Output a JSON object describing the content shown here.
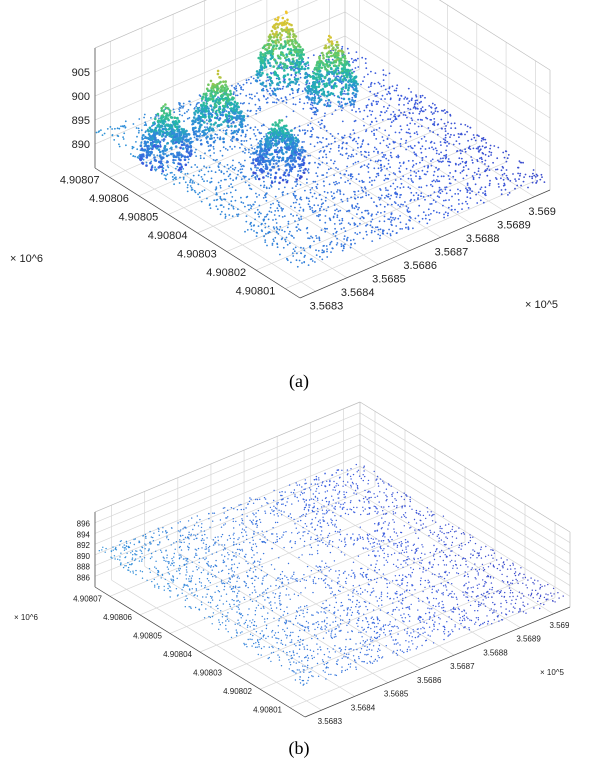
{
  "chart_data": [
    {
      "type": "scatter3d",
      "panel_label": "(a)",
      "title": "",
      "xlabel": "",
      "ylabel": "",
      "zlabel": "",
      "x_ticks": [
        "3.5683",
        "3.5684",
        "3.5685",
        "3.5686",
        "3.5687",
        "3.5688",
        "3.5689",
        "3.569"
      ],
      "x_multiplier": "× 10^5",
      "y_ticks": [
        "4.90801",
        "4.90802",
        "4.90803",
        "4.90804",
        "4.90805",
        "4.90806",
        "4.90807"
      ],
      "y_multiplier": "× 10^6",
      "z_ticks": [
        "890",
        "895",
        "900",
        "905"
      ],
      "xlim": [
        356830,
        356900
      ],
      "ylim": [
        4908005,
        4908075
      ],
      "zlim": [
        887,
        905
      ],
      "grid": true,
      "colormap": [
        "#3b2fb0",
        "#3a5ee0",
        "#2f8fd8",
        "#22b8a8",
        "#5cc86a",
        "#c9c43a",
        "#f6c62b",
        "#f9d81f"
      ],
      "tree_crowns": [
        {
          "x": 356840,
          "y": 4908063,
          "z": 898
        },
        {
          "x": 356853,
          "y": 4908061,
          "z": 901
        },
        {
          "x": 356857,
          "y": 4908045,
          "z": 897
        },
        {
          "x": 356875,
          "y": 4908066,
          "z": 904
        },
        {
          "x": 356880,
          "y": 4908055,
          "z": 902
        }
      ]
    },
    {
      "type": "scatter3d",
      "panel_label": "(b)",
      "title": "",
      "xlabel": "",
      "ylabel": "",
      "zlabel": "",
      "x_ticks": [
        "3.5683",
        "3.5684",
        "3.5685",
        "3.5686",
        "3.5687",
        "3.5688",
        "3.5689",
        "3.569"
      ],
      "x_multiplier": "× 10^5",
      "y_ticks": [
        "4.90801",
        "4.90802",
        "4.90803",
        "4.90804",
        "4.90805",
        "4.90806",
        "4.90807"
      ],
      "y_multiplier": "× 10^6",
      "z_ticks": [
        "886",
        "888",
        "890",
        "892",
        "894",
        "896"
      ],
      "xlim": [
        356830,
        356900
      ],
      "ylim": [
        4908005,
        4908075
      ],
      "zlim": [
        886,
        896
      ],
      "grid": true,
      "colormap": [
        "#3b2fb0",
        "#3a5ee0",
        "#2f8fd8",
        "#22b8a8",
        "#3ccf88"
      ],
      "tree_crowns": []
    }
  ]
}
